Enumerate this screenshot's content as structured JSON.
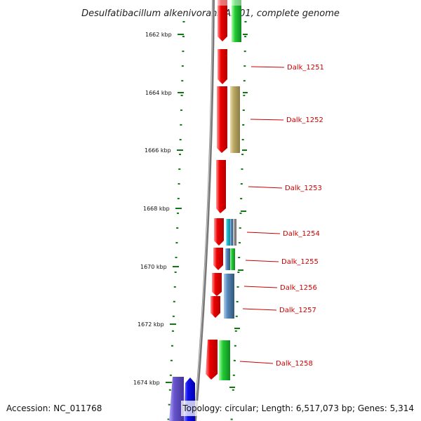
{
  "title": "Desulfatibacillum alkenivorans AK-01, complete genome",
  "accession": "Accession: NC_011768",
  "topology": "Topology: circular; Length: 6,517,073 bp; Genes: 5,314",
  "ruler_ticks": [
    "1662 kbp",
    "1664 kbp",
    "1666 kbp",
    "1668 kbp",
    "1670 kbp",
    "1672 kbp",
    "1674 kbp"
  ],
  "gene_labels": [
    "Dalk_1251",
    "Dalk_1252",
    "Dalk_1253",
    "Dalk_1254",
    "Dalk_1255",
    "Dalk_1256",
    "Dalk_1257",
    "Dalk_1258"
  ],
  "colors": {
    "cds": "#ee0000",
    "green": "#22cc33",
    "olive": "#bbaa66",
    "cyan": "#22bbcc",
    "steel": "#5588bb",
    "blue": "#1111ee",
    "purple": "#6655cc",
    "tick": "#117711",
    "backbone": "#888888",
    "label": "#cc0000"
  }
}
